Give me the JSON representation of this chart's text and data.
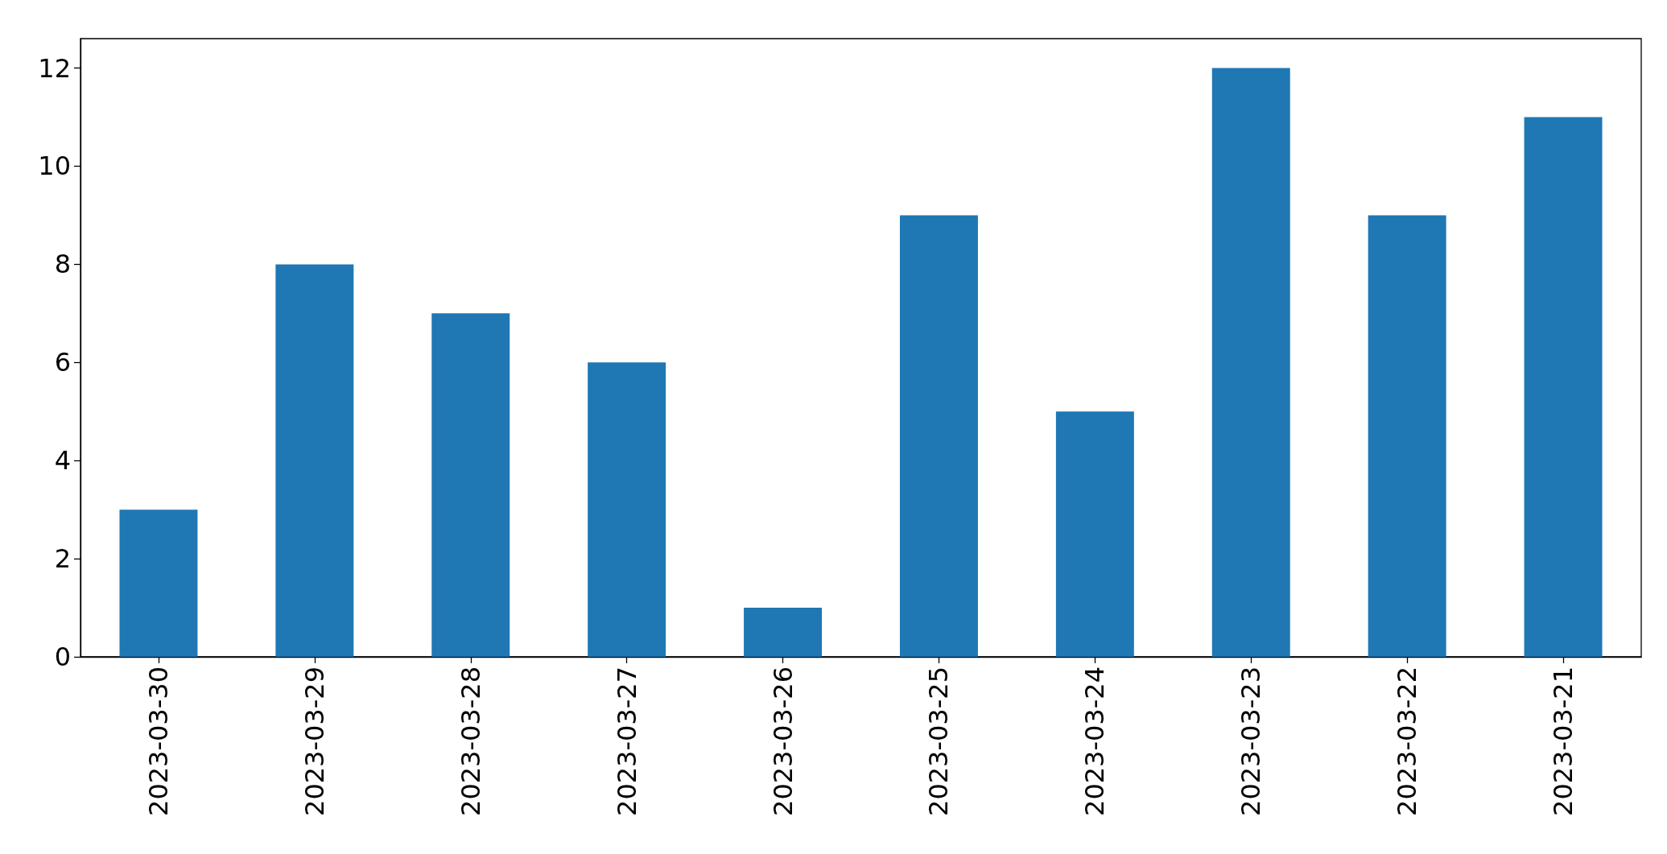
{
  "chart_data": {
    "type": "bar",
    "categories": [
      "2023-03-30",
      "2023-03-29",
      "2023-03-28",
      "2023-03-27",
      "2023-03-26",
      "2023-03-25",
      "2023-03-24",
      "2023-03-23",
      "2023-03-22",
      "2023-03-21"
    ],
    "values": [
      3,
      8,
      7,
      6,
      1,
      9,
      5,
      12,
      9,
      11
    ],
    "color": "#1f77b4",
    "ylim": [
      0,
      12.6
    ],
    "yticks": [
      0,
      2,
      4,
      6,
      8,
      10,
      12
    ],
    "grid": false
  }
}
